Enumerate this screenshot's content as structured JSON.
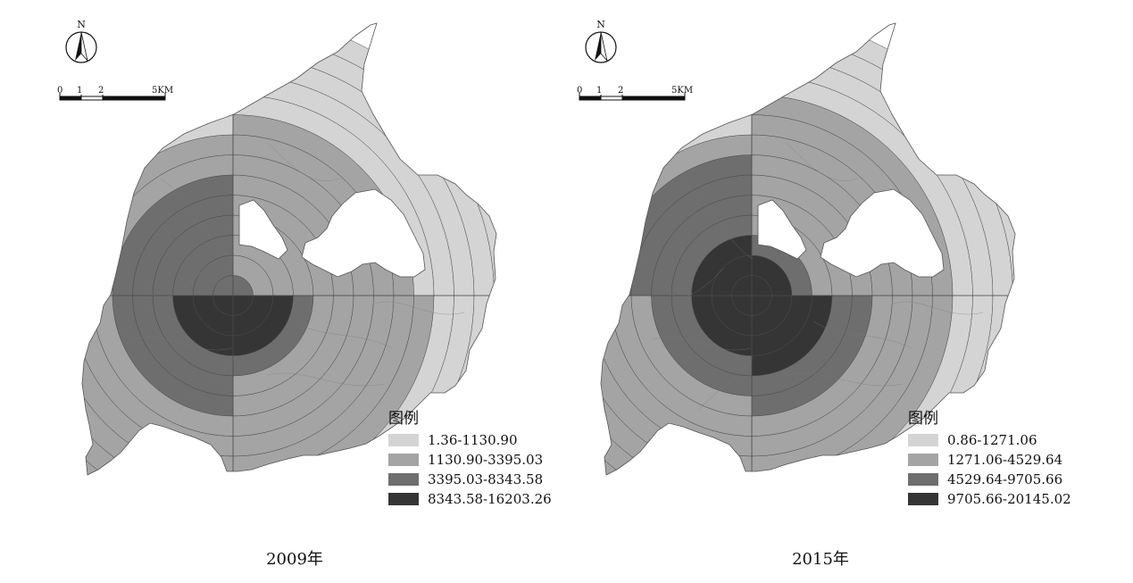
{
  "maps": [
    {
      "caption": "2009年",
      "north_label": "N",
      "scale_ticks": [
        "0",
        "1",
        "2",
        "5KM"
      ],
      "legend": {
        "title": "图例",
        "classes": [
          {
            "label": "1.36-1130.90",
            "color": "#d4d4d4"
          },
          {
            "label": "1130.90-3395.03",
            "color": "#a4a4a4"
          },
          {
            "label": "3395.03-8343.58",
            "color": "#6e6e6e"
          },
          {
            "label": "8343.58-16203.26",
            "color": "#353535"
          }
        ]
      },
      "quadrant_classes": {
        "NE": [
          2,
          1,
          1,
          1,
          1,
          1,
          1,
          1,
          1,
          0,
          0,
          0,
          0,
          0
        ],
        "NW": [
          2,
          2,
          2,
          2,
          2,
          2,
          1,
          1,
          0,
          0,
          0,
          0,
          0,
          0
        ],
        "SW": [
          3,
          3,
          3,
          2,
          2,
          2,
          1,
          1,
          1,
          1,
          1,
          1,
          1,
          1
        ],
        "SE": [
          3,
          3,
          3,
          2,
          1,
          1,
          1,
          1,
          1,
          1,
          0,
          0,
          0,
          0
        ]
      }
    },
    {
      "caption": "2015年",
      "north_label": "N",
      "scale_ticks": [
        "0",
        "1",
        "2",
        "5KM"
      ],
      "legend": {
        "title": "图例",
        "classes": [
          {
            "label": "0.86-1271.06",
            "color": "#d4d4d4"
          },
          {
            "label": "1271.06-4529.64",
            "color": "#a4a4a4"
          },
          {
            "label": "4529.64-9705.66",
            "color": "#6e6e6e"
          },
          {
            "label": "9705.66-20145.02",
            "color": "#353535"
          }
        ]
      },
      "quadrant_classes": {
        "NE": [
          3,
          3,
          2,
          1,
          1,
          1,
          1,
          1,
          1,
          1,
          0,
          0,
          0,
          0
        ],
        "NW": [
          3,
          3,
          3,
          2,
          2,
          2,
          2,
          1,
          0,
          0,
          0,
          0,
          0,
          0
        ],
        "SW": [
          3,
          3,
          3,
          2,
          2,
          1,
          1,
          1,
          1,
          1,
          1,
          1,
          1,
          1
        ],
        "SE": [
          3,
          3,
          3,
          3,
          2,
          2,
          1,
          1,
          1,
          1,
          0,
          0,
          0,
          0
        ]
      }
    }
  ]
}
